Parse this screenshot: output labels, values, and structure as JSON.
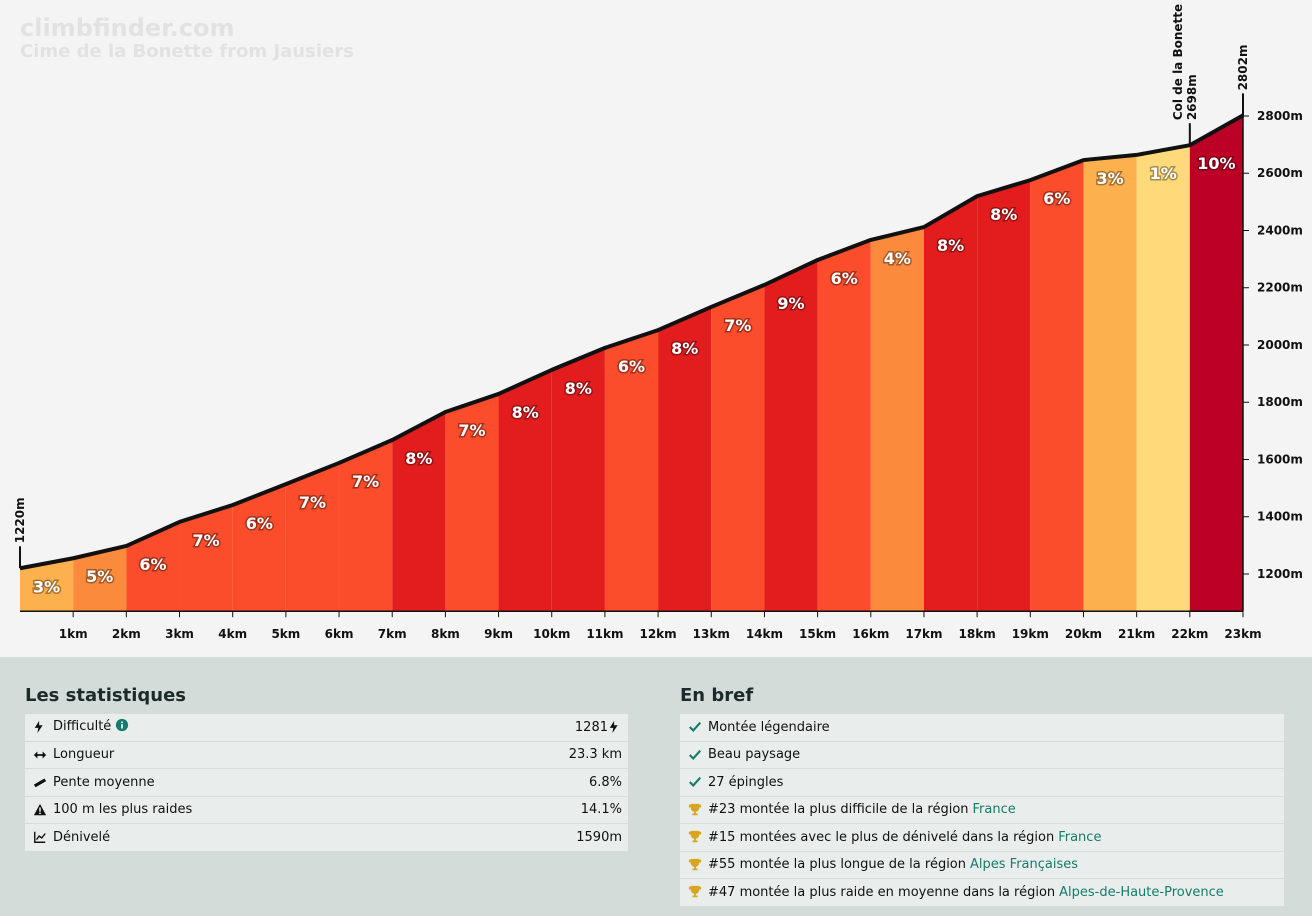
{
  "chart_data": {
    "type": "area",
    "title": "climbfinder.com",
    "subtitle": "Cime de la Bonette from Jausiers",
    "x": [
      0,
      1,
      2,
      3,
      4,
      5,
      6,
      7,
      8,
      9,
      10,
      11,
      12,
      13,
      14,
      15,
      16,
      17,
      18,
      19,
      20,
      21,
      22,
      23
    ],
    "values": [
      1220,
      1255,
      1298,
      1382,
      1441,
      1514,
      1588,
      1668,
      1766,
      1829,
      1913,
      1990,
      2052,
      2133,
      2210,
      2297,
      2367,
      2412,
      2520,
      2576,
      2646,
      2664,
      2698,
      2802
    ],
    "xlim": [
      0,
      23
    ],
    "ylim": [
      1070,
      2830
    ],
    "xticks": [
      {
        "value": 1,
        "label": "1km"
      },
      {
        "value": 2,
        "label": "2km"
      },
      {
        "value": 3,
        "label": "3km"
      },
      {
        "value": 4,
        "label": "4km"
      },
      {
        "value": 5,
        "label": "5km"
      },
      {
        "value": 6,
        "label": "6km"
      },
      {
        "value": 7,
        "label": "7km"
      },
      {
        "value": 8,
        "label": "8km"
      },
      {
        "value": 9,
        "label": "9km"
      },
      {
        "value": 10,
        "label": "10km"
      },
      {
        "value": 11,
        "label": "11km"
      },
      {
        "value": 12,
        "label": "12km"
      },
      {
        "value": 13,
        "label": "13km"
      },
      {
        "value": 14,
        "label": "14km"
      },
      {
        "value": 15,
        "label": "15km"
      },
      {
        "value": 16,
        "label": "16km"
      },
      {
        "value": 17,
        "label": "17km"
      },
      {
        "value": 18,
        "label": "18km"
      },
      {
        "value": 19,
        "label": "19km"
      },
      {
        "value": 20,
        "label": "20km"
      },
      {
        "value": 21,
        "label": "21km"
      },
      {
        "value": 22,
        "label": "22km"
      },
      {
        "value": 23,
        "label": "23km"
      }
    ],
    "yticks": [
      {
        "value": 1200,
        "label": "1200m"
      },
      {
        "value": 1400,
        "label": "1400m"
      },
      {
        "value": 1600,
        "label": "1600m"
      },
      {
        "value": 1800,
        "label": "1800m"
      },
      {
        "value": 2000,
        "label": "2000m"
      },
      {
        "value": 2200,
        "label": "2200m"
      },
      {
        "value": 2400,
        "label": "2400m"
      },
      {
        "value": 2600,
        "label": "2600m"
      },
      {
        "value": 2800,
        "label": "2800m"
      }
    ],
    "segments": {
      "values": [
        3,
        5,
        6,
        7,
        6,
        7,
        7,
        8,
        7,
        8,
        8,
        6,
        8,
        7,
        9,
        6,
        4,
        8,
        8,
        6,
        3,
        1,
        10
      ],
      "value_labels": [
        "3%",
        "5%",
        "6%",
        "7%",
        "6%",
        "7%",
        "7%",
        "8%",
        "7%",
        "8%",
        "8%",
        "6%",
        "8%",
        "7%",
        "9%",
        "6%",
        "4%",
        "8%",
        "8%",
        "6%",
        "3%",
        "1%",
        "10%"
      ],
      "colors": [
        "#fdb04e",
        "#fb8a3c",
        "#fb4c2b",
        "#fb4c2b",
        "#fb4c2b",
        "#fb4c2b",
        "#fb4c2b",
        "#e31d1e",
        "#fb4c2b",
        "#e31d1e",
        "#e31d1e",
        "#fb4c2b",
        "#e31d1e",
        "#fb4c2b",
        "#e31d1e",
        "#fb4c2b",
        "#fb8a3c",
        "#e31d1e",
        "#e31d1e",
        "#fb4c2b",
        "#fdb04e",
        "#ffd97a",
        "#bd0026"
      ]
    },
    "annotations": [
      {
        "x": 0,
        "y": 1220,
        "label": "1220m"
      },
      {
        "x": 22,
        "y": 2698,
        "label": "Col de la Bonette",
        "sublabel": "2698m"
      },
      {
        "x": 23,
        "y": 2802,
        "label": "2802m"
      }
    ]
  },
  "stats": {
    "title": "Les statistiques",
    "rows": [
      {
        "label": "Difficulté",
        "value": "1281"
      },
      {
        "label": "Longueur",
        "value": "23.3 km"
      },
      {
        "label": "Pente moyenne",
        "value": "6.8%"
      },
      {
        "label": "100 m les plus raides",
        "value": "14.1%"
      },
      {
        "label": "Dénivelé",
        "value": "1590m"
      }
    ]
  },
  "summary": {
    "title": "En bref",
    "items": [
      {
        "text": "Montée légendaire"
      },
      {
        "text": "Beau paysage"
      },
      {
        "text": "27 épingles"
      },
      {
        "text": "#23 montée la plus difficile de la région",
        "link": "France"
      },
      {
        "text": "#15 montées avec le plus de dénivelé dans la région",
        "link": "France"
      },
      {
        "text": "#55 montée la plus longue de la région",
        "link": "Alpes Françaises"
      },
      {
        "text": "#47 montée la plus raide en moyenne dans la région",
        "link": "Alpes-de-Haute-Provence"
      }
    ]
  }
}
